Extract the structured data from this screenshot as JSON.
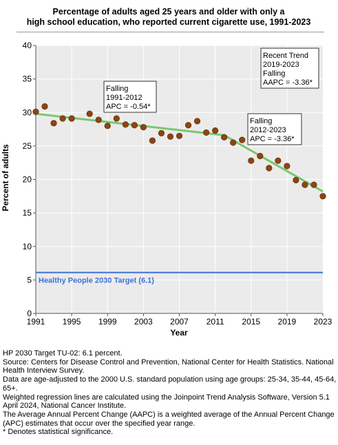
{
  "chart_data": {
    "type": "scatter",
    "title": "Percentage of adults aged 25 years and older with only a high school education, who reported current cigarette use, 1991-2023",
    "title_lines": [
      "Percentage of adults aged 25 years and older with only a",
      "high school education, who reported current cigarette use, 1991-2023"
    ],
    "xlabel": "Year",
    "ylabel": "Percent of adults",
    "xlim": [
      1991,
      2023
    ],
    "ylim": [
      0,
      40
    ],
    "x_ticks": [
      1991,
      1995,
      1999,
      2003,
      2007,
      2011,
      2015,
      2019,
      2023
    ],
    "y_ticks": [
      0,
      5,
      10,
      15,
      20,
      25,
      30,
      35,
      40
    ],
    "grid": true,
    "series": [
      {
        "type": "scatter",
        "color": "#8B4513",
        "x": [
          1991,
          1992,
          1993,
          1994,
          1995,
          1997,
          1998,
          1999,
          2000,
          2001,
          2002,
          2003,
          2004,
          2005,
          2006,
          2007,
          2008,
          2009,
          2010,
          2011,
          2012,
          2013,
          2014,
          2015,
          2016,
          2017,
          2018,
          2019,
          2020,
          2021,
          2022,
          2023
        ],
        "y": [
          30.1,
          30.9,
          28.4,
          29.1,
          29.1,
          29.8,
          28.9,
          28.0,
          29.1,
          28.2,
          28.1,
          27.8,
          25.8,
          26.9,
          26.4,
          26.5,
          28.1,
          28.7,
          27.0,
          27.3,
          26.3,
          25.5,
          25.9,
          22.8,
          23.5,
          21.7,
          22.8,
          22.0,
          19.9,
          19.2,
          19.2,
          17.5
        ]
      },
      {
        "type": "line",
        "color": "#77c86e",
        "x": [
          1991,
          2012,
          2023
        ],
        "y": [
          29.8,
          26.6,
          18.2
        ]
      },
      {
        "type": "line",
        "name": "Healthy People 2030 Target (6.1)",
        "color": "#3a6fd8",
        "x": [
          1991,
          2023
        ],
        "y": [
          6.1,
          6.1
        ]
      }
    ],
    "annotations": [
      {
        "lines": [
          "Falling",
          "1991-2012",
          "APC = -0.54*"
        ]
      },
      {
        "lines": [
          "Falling",
          "2012-2023",
          "APC = -3.36*"
        ]
      },
      {
        "lines": [
          "Recent Trend",
          "2019-2023",
          "Falling",
          "AAPC = -3.36*"
        ]
      }
    ],
    "target_label": "Healthy People 2030 Target (6.1)"
  },
  "notes": [
    "HP 2030 Target TU-02: 6.1 percent.",
    "Source: Centers for Disease Control and Prevention, National Center for Health Statistics. National Health Interview Survey.",
    "Data are age-adjusted to the 2000 U.S. standard population using age groups: 25-34, 35-44, 45-64, 65+.",
    "Weighted regression lines are calculated using the Joinpoint Trend Analysis Software, Version 5.1 April 2024, National Cancer Institute.",
    "The Average Annual Percent Change (AAPC) is a weighted average of the Annual Percent Change (APC) estimates that occur over the specified year range.",
    "* Denotes statistical significance."
  ]
}
